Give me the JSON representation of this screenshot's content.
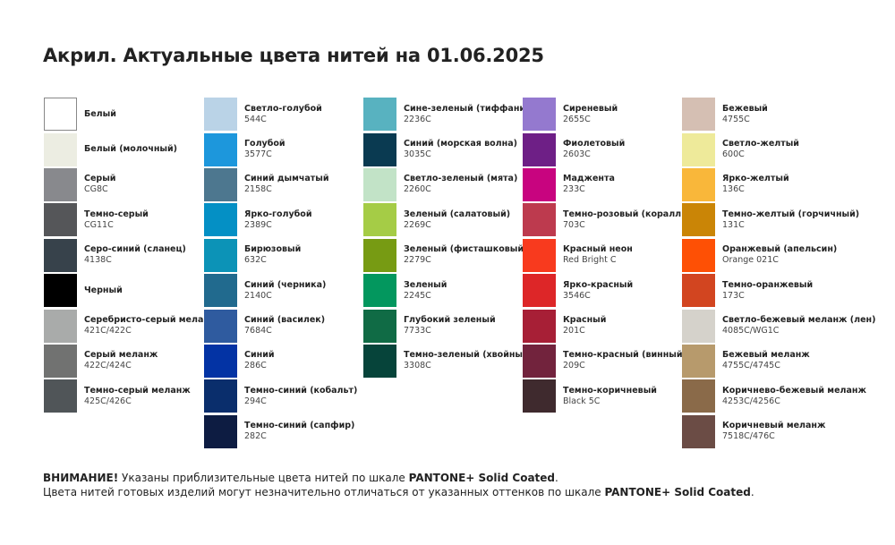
{
  "title": "Акрил. Актуальные цвета нитей на 01.06.2025",
  "columns": [
    [
      {
        "name": "Белый",
        "code": "",
        "color": "#ffffff"
      },
      {
        "name": "Белый (молочный)",
        "code": "",
        "color": "#ecede2"
      },
      {
        "name": "Серый",
        "code": "CG8C",
        "color": "#88898d"
      },
      {
        "name": "Темно-серый",
        "code": "CG11C",
        "color": "#555659"
      },
      {
        "name": "Серо-синий (сланец)",
        "code": "4138C",
        "color": "#37424b"
      },
      {
        "name": "Черный",
        "code": "",
        "color": "#000000"
      },
      {
        "name": "Серебристо-серый меланж",
        "code": "421C/422C",
        "color": "#a9abaa"
      },
      {
        "name": "Серый меланж",
        "code": "422C/424C",
        "color": "#717271"
      },
      {
        "name": "Темно-серый меланж",
        "code": "425C/426C",
        "color": "#505558"
      }
    ],
    [
      {
        "name": "Светло-голубой",
        "code": "544C",
        "color": "#bad3e7"
      },
      {
        "name": "Голубой",
        "code": "3577C",
        "color": "#1d97dc"
      },
      {
        "name": "Синий дымчатый",
        "code": "2158C",
        "color": "#4d778f"
      },
      {
        "name": "Ярко-голубой",
        "code": "2389C",
        "color": "#0490c5"
      },
      {
        "name": "Бирюзовый",
        "code": "632C",
        "color": "#0c93b7"
      },
      {
        "name": "Синий (черника)",
        "code": "2140C",
        "color": "#216a8e"
      },
      {
        "name": "Синий (василек)",
        "code": "7684C",
        "color": "#2f5b9f"
      },
      {
        "name": "Синий",
        "code": "286C",
        "color": "#0333a4"
      },
      {
        "name": "Темно-синий (кобальт)",
        "code": "294C",
        "color": "#0a2e6c"
      },
      {
        "name": "Темно-синий (сапфир)",
        "code": "282C",
        "color": "#0d1c42"
      }
    ],
    [
      {
        "name": "Сине-зеленый (тиффани)",
        "code": "2236C",
        "color": "#58b2c0"
      },
      {
        "name": "Синий (морская волна)",
        "code": "3035C",
        "color": "#0a3a51"
      },
      {
        "name": "Светло-зеленый (мята)",
        "code": "2260C",
        "color": "#c2e3c7"
      },
      {
        "name": "Зеленый (салатовый)",
        "code": "2269C",
        "color": "#a5cc46"
      },
      {
        "name": "Зеленый (фисташковый)",
        "code": "2279C",
        "color": "#779b13"
      },
      {
        "name": "Зеленый",
        "code": "2245C",
        "color": "#03975e"
      },
      {
        "name": "Глубокий зеленый",
        "code": "7733C",
        "color": "#106b45"
      },
      {
        "name": "Темно-зеленый (хвойный)",
        "code": "3308C",
        "color": "#06443a"
      }
    ],
    [
      {
        "name": "Сиреневый",
        "code": "2655C",
        "color": "#9479cf"
      },
      {
        "name": "Фиолетовый",
        "code": "2603C",
        "color": "#6e1f86"
      },
      {
        "name": "Маджента",
        "code": "233C",
        "color": "#c8047f"
      },
      {
        "name": "Темно-розовый (коралл)",
        "code": "703C",
        "color": "#bd3a4e"
      },
      {
        "name": "Красный неон",
        "code": "Red Bright C",
        "color": "#f83a1e"
      },
      {
        "name": "Ярко-красный",
        "code": "3546C",
        "color": "#dd2628"
      },
      {
        "name": "Красный",
        "code": "201C",
        "color": "#a71f36"
      },
      {
        "name": "Темно-красный (винный)",
        "code": "209C",
        "color": "#72233d"
      },
      {
        "name": "Темно-коричневый",
        "code": "Black 5C",
        "color": "#3f2a2e"
      }
    ],
    [
      {
        "name": "Бежевый",
        "code": "4755C",
        "color": "#d5bfb3"
      },
      {
        "name": "Светло-желтый",
        "code": "600C",
        "color": "#eeea9a"
      },
      {
        "name": "Ярко-желтый",
        "code": "136C",
        "color": "#f9b73a"
      },
      {
        "name": "Темно-желтый (горчичный)",
        "code": "131C",
        "color": "#ca8506"
      },
      {
        "name": "Оранжевый (апельсин)",
        "code": "Orange 021C",
        "color": "#fe5005"
      },
      {
        "name": "Темно-оранжевый",
        "code": "173C",
        "color": "#d24520"
      },
      {
        "name": "Светло-бежевый меланж (лен)",
        "code": "4085C/WG1C",
        "color": "#d5d2cb"
      },
      {
        "name": "Бежевый меланж",
        "code": "4755C/4745C",
        "color": "#b79a6c"
      },
      {
        "name": "Коричнево-бежевый меланж",
        "code": "4253C/4256C",
        "color": "#8a6a49"
      },
      {
        "name": "Коричневый меланж",
        "code": "7518C/476C",
        "color": "#6b4c45"
      }
    ]
  ],
  "footer": {
    "warning_label": "ВНИМАНИЕ!",
    "line1_text": " Указаны приблизительные цвета нитей по шкале ",
    "pantone": "PANTONE+ Solid Coated",
    "line1_end": ".",
    "line2_text": "Цвета нитей готовых изделий могут незначительно отличаться от указанных оттенков по шкале ",
    "line2_end": "."
  }
}
